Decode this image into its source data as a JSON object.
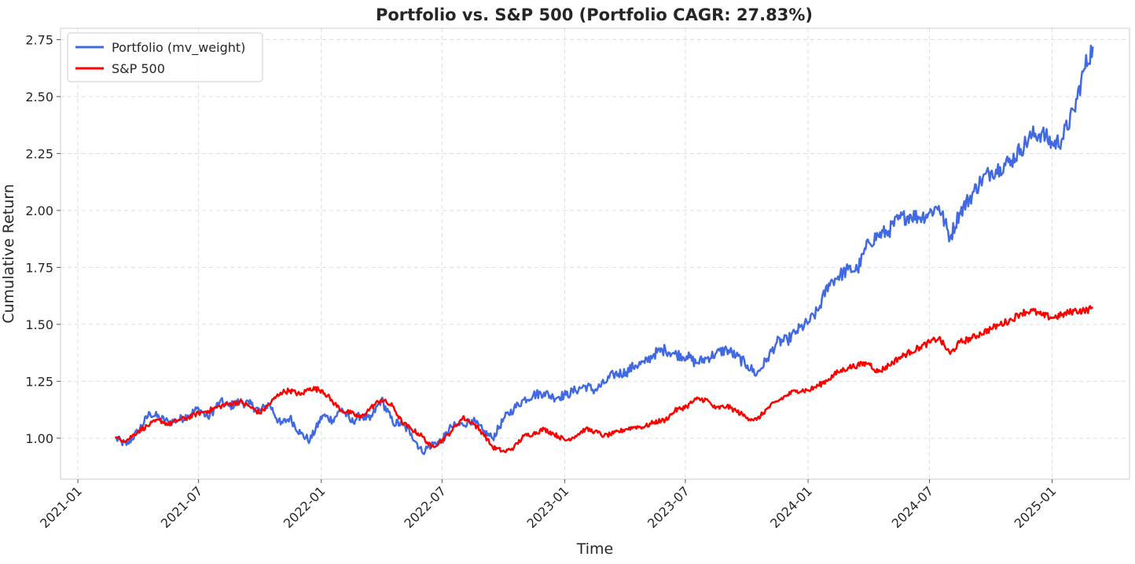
{
  "chart_data": {
    "type": "line",
    "title": "Portfolio vs. S&P 500 (Portfolio CAGR: 27.83%)",
    "xlabel": "Time",
    "ylabel": "Cumulative Return",
    "x_ticks": [
      "2021-01",
      "2021-07",
      "2022-01",
      "2022-07",
      "2023-01",
      "2023-07",
      "2024-01",
      "2024-07",
      "2025-01"
    ],
    "y_ticks": [
      "1.00",
      "1.25",
      "1.50",
      "1.75",
      "2.00",
      "2.25",
      "2.50",
      "2.75"
    ],
    "xlim": [
      "2020-12-06",
      "2025-04-27"
    ],
    "ylim": [
      0.82,
      2.8
    ],
    "grid": true,
    "legend_position": "top-left",
    "series": [
      {
        "name": "Portfolio (mv_weight)",
        "color": "#4169E1",
        "x": [
          "2021-02-26",
          "2021-03-15",
          "2021-04-01",
          "2021-04-19",
          "2021-05-03",
          "2021-05-17",
          "2021-06-01",
          "2021-06-15",
          "2021-07-01",
          "2021-07-15",
          "2021-08-02",
          "2021-08-16",
          "2021-09-01",
          "2021-09-15",
          "2021-10-01",
          "2021-10-15",
          "2021-11-01",
          "2021-11-15",
          "2021-12-01",
          "2021-12-15",
          "2022-01-03",
          "2022-01-18",
          "2022-02-01",
          "2022-02-15",
          "2022-03-01",
          "2022-03-15",
          "2022-04-01",
          "2022-04-18",
          "2022-05-02",
          "2022-05-16",
          "2022-06-01",
          "2022-06-15",
          "2022-07-01",
          "2022-07-15",
          "2022-08-01",
          "2022-08-15",
          "2022-09-01",
          "2022-09-15",
          "2022-10-03",
          "2022-10-17",
          "2022-11-01",
          "2022-11-15",
          "2022-12-01",
          "2022-12-15",
          "2023-01-03",
          "2023-01-17",
          "2023-02-01",
          "2023-02-15",
          "2023-03-01",
          "2023-03-15",
          "2023-04-03",
          "2023-04-17",
          "2023-05-01",
          "2023-05-15",
          "2023-06-01",
          "2023-06-15",
          "2023-07-03",
          "2023-07-17",
          "2023-08-01",
          "2023-08-15",
          "2023-09-01",
          "2023-09-15",
          "2023-10-02",
          "2023-10-16",
          "2023-11-01",
          "2023-11-15",
          "2023-12-01",
          "2023-12-15",
          "2024-01-02",
          "2024-01-16",
          "2024-02-01",
          "2024-02-15",
          "2024-03-01",
          "2024-03-15",
          "2024-04-01",
          "2024-04-15",
          "2024-05-01",
          "2024-05-15",
          "2024-06-03",
          "2024-06-17",
          "2024-07-01",
          "2024-07-15",
          "2024-08-01",
          "2024-08-15",
          "2024-09-03",
          "2024-09-16",
          "2024-10-01",
          "2024-10-15",
          "2024-11-01",
          "2024-11-15",
          "2024-12-02",
          "2024-12-16",
          "2025-01-02",
          "2025-01-15",
          "2025-02-03",
          "2025-02-18",
          "2025-03-03"
        ],
        "values": [
          1.0,
          0.97,
          1.03,
          1.11,
          1.09,
          1.07,
          1.08,
          1.1,
          1.13,
          1.09,
          1.16,
          1.14,
          1.16,
          1.15,
          1.12,
          1.15,
          1.06,
          1.09,
          1.02,
          0.99,
          1.1,
          1.08,
          1.13,
          1.07,
          1.1,
          1.08,
          1.17,
          1.07,
          1.06,
          1.02,
          0.94,
          0.97,
          0.99,
          1.05,
          1.06,
          1.08,
          1.03,
          1.0,
          1.09,
          1.13,
          1.17,
          1.19,
          1.2,
          1.18,
          1.19,
          1.21,
          1.23,
          1.21,
          1.24,
          1.28,
          1.29,
          1.32,
          1.33,
          1.37,
          1.39,
          1.37,
          1.36,
          1.33,
          1.35,
          1.37,
          1.39,
          1.36,
          1.32,
          1.28,
          1.35,
          1.42,
          1.43,
          1.47,
          1.51,
          1.56,
          1.68,
          1.71,
          1.74,
          1.74,
          1.86,
          1.89,
          1.91,
          1.96,
          1.98,
          1.97,
          1.99,
          2.02,
          1.88,
          1.99,
          2.07,
          2.13,
          2.17,
          2.19,
          2.22,
          2.27,
          2.33,
          2.34,
          2.29,
          2.31,
          2.44,
          2.62,
          2.72
        ]
      },
      {
        "name": "S&P 500",
        "color": "#FF0000",
        "x": [
          "2021-02-26",
          "2021-03-15",
          "2021-04-01",
          "2021-04-19",
          "2021-05-03",
          "2021-05-17",
          "2021-06-01",
          "2021-06-15",
          "2021-07-01",
          "2021-07-15",
          "2021-08-02",
          "2021-08-16",
          "2021-09-01",
          "2021-09-15",
          "2021-10-01",
          "2021-10-15",
          "2021-11-01",
          "2021-11-15",
          "2021-12-01",
          "2021-12-15",
          "2022-01-03",
          "2022-01-18",
          "2022-02-01",
          "2022-02-15",
          "2022-03-01",
          "2022-03-15",
          "2022-04-01",
          "2022-04-18",
          "2022-05-02",
          "2022-05-16",
          "2022-06-01",
          "2022-06-15",
          "2022-07-01",
          "2022-07-15",
          "2022-08-01",
          "2022-08-15",
          "2022-09-01",
          "2022-09-15",
          "2022-10-03",
          "2022-10-17",
          "2022-11-01",
          "2022-11-15",
          "2022-12-01",
          "2022-12-15",
          "2023-01-03",
          "2023-01-17",
          "2023-02-01",
          "2023-02-15",
          "2023-03-01",
          "2023-03-15",
          "2023-04-03",
          "2023-04-17",
          "2023-05-01",
          "2023-05-15",
          "2023-06-01",
          "2023-06-15",
          "2023-07-03",
          "2023-07-17",
          "2023-08-01",
          "2023-08-15",
          "2023-09-01",
          "2023-09-15",
          "2023-10-02",
          "2023-10-16",
          "2023-11-01",
          "2023-11-15",
          "2023-12-01",
          "2023-12-15",
          "2024-01-02",
          "2024-01-16",
          "2024-02-01",
          "2024-02-15",
          "2024-03-01",
          "2024-03-15",
          "2024-04-01",
          "2024-04-15",
          "2024-05-01",
          "2024-05-15",
          "2024-06-03",
          "2024-06-17",
          "2024-07-01",
          "2024-07-15",
          "2024-08-01",
          "2024-08-15",
          "2024-09-03",
          "2024-09-16",
          "2024-10-01",
          "2024-10-15",
          "2024-11-01",
          "2024-11-15",
          "2024-12-02",
          "2024-12-16",
          "2025-01-02",
          "2025-01-15",
          "2025-02-03",
          "2025-02-18",
          "2025-03-03"
        ],
        "values": [
          1.0,
          0.99,
          1.03,
          1.06,
          1.08,
          1.06,
          1.08,
          1.09,
          1.11,
          1.12,
          1.14,
          1.15,
          1.16,
          1.14,
          1.11,
          1.15,
          1.2,
          1.21,
          1.19,
          1.22,
          1.21,
          1.16,
          1.12,
          1.11,
          1.09,
          1.13,
          1.17,
          1.14,
          1.07,
          1.04,
          1.01,
          0.96,
          0.99,
          1.03,
          1.09,
          1.07,
          1.02,
          0.96,
          0.94,
          0.96,
          1.01,
          1.02,
          1.04,
          1.02,
          0.99,
          1.01,
          1.04,
          1.03,
          1.01,
          1.02,
          1.04,
          1.05,
          1.05,
          1.07,
          1.08,
          1.12,
          1.14,
          1.17,
          1.17,
          1.13,
          1.14,
          1.12,
          1.09,
          1.08,
          1.13,
          1.16,
          1.19,
          1.21,
          1.21,
          1.23,
          1.26,
          1.29,
          1.31,
          1.32,
          1.33,
          1.29,
          1.32,
          1.35,
          1.38,
          1.4,
          1.42,
          1.44,
          1.37,
          1.42,
          1.44,
          1.46,
          1.48,
          1.5,
          1.52,
          1.55,
          1.56,
          1.54,
          1.53,
          1.54,
          1.56,
          1.56,
          1.57
        ]
      }
    ]
  }
}
